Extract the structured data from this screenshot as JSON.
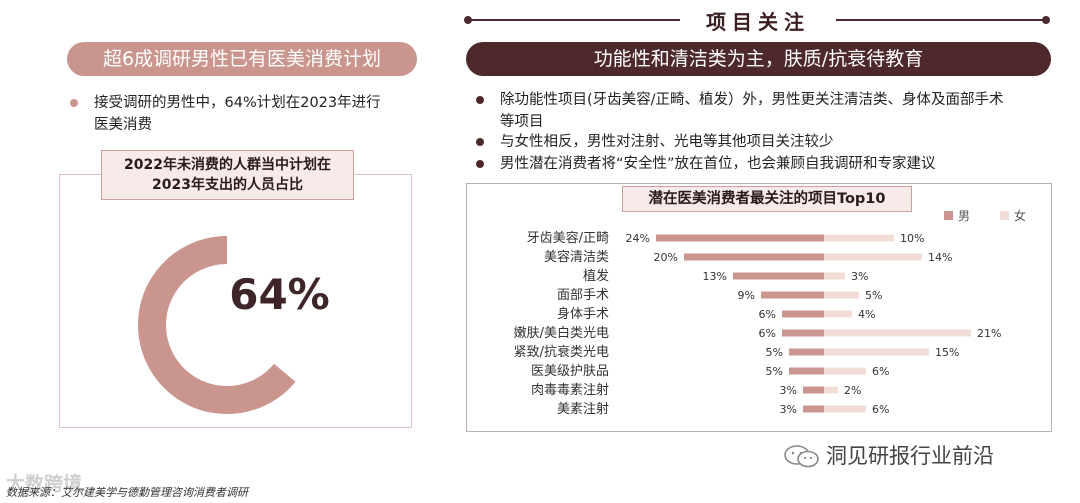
{
  "header": {
    "title": "项目关注"
  },
  "left": {
    "pill": "超6成调研男性已有医美消费计划",
    "bullet": "接受调研的男性中，64%计划在2023年进行医美消费",
    "bullet_line1": "接受调研的男性中，64%计划在2023年进行",
    "bullet_line2": "医美消费",
    "box_title_line1": "2022年未消费的人群当中计划在",
    "box_title_line2": "2023年支出的人员占比",
    "percent_label": "64%",
    "percent_value": 64
  },
  "right": {
    "pill": "功能性和清洁类为主，肤质/抗衰待教育",
    "bullets": [
      {
        "line1": "除功能性项目(牙齿美容/正畸、植发）外，男性更关注清洁类、身体及面部手术",
        "line2": "等项目"
      },
      {
        "line1": "与女性相反，男性对注射、光电等其他项目关注较少",
        "line2": ""
      },
      {
        "line1": "男性潜在消费者将“安全性”放在首位，也会兼顾自我调研和专家建议",
        "line2": ""
      }
    ]
  },
  "chart_data": {
    "type": "bar",
    "orientation": "horizontal-diverging",
    "title": "潜在医美消费者最关注的项目Top10",
    "categories": [
      "牙齿美容/正畸",
      "美容清洁类",
      "植发",
      "面部手术",
      "身体手术",
      "嫩肤/美白类光电",
      "紧致/抗衰类光电",
      "医美级护肤品",
      "肉毒毒素注射",
      "美素注射"
    ],
    "series": [
      {
        "name": "男",
        "color": "#c9958d",
        "values": [
          24,
          20,
          13,
          9,
          6,
          6,
          5,
          5,
          3,
          3
        ],
        "labels": [
          "24%",
          "20%",
          "13%",
          "9%",
          "6%",
          "6%",
          "5%",
          "5%",
          "3%",
          "3%"
        ]
      },
      {
        "name": "女",
        "color": "#f2dcd6",
        "values": [
          10,
          14,
          3,
          5,
          4,
          21,
          15,
          6,
          2,
          6
        ],
        "labels": [
          "10%",
          "14%",
          "3%",
          "5%",
          "4%",
          "21%",
          "15%",
          "6%",
          "2%",
          "6%"
        ]
      }
    ],
    "legend": "top-right"
  },
  "footer": {
    "source": "数据来源：艾尔建美学与德勤管理咨询消费者调研",
    "watermark": "大数跨境"
  },
  "brand": {
    "name": "洞见研报行业前沿",
    "icon": "wechat-icon"
  }
}
